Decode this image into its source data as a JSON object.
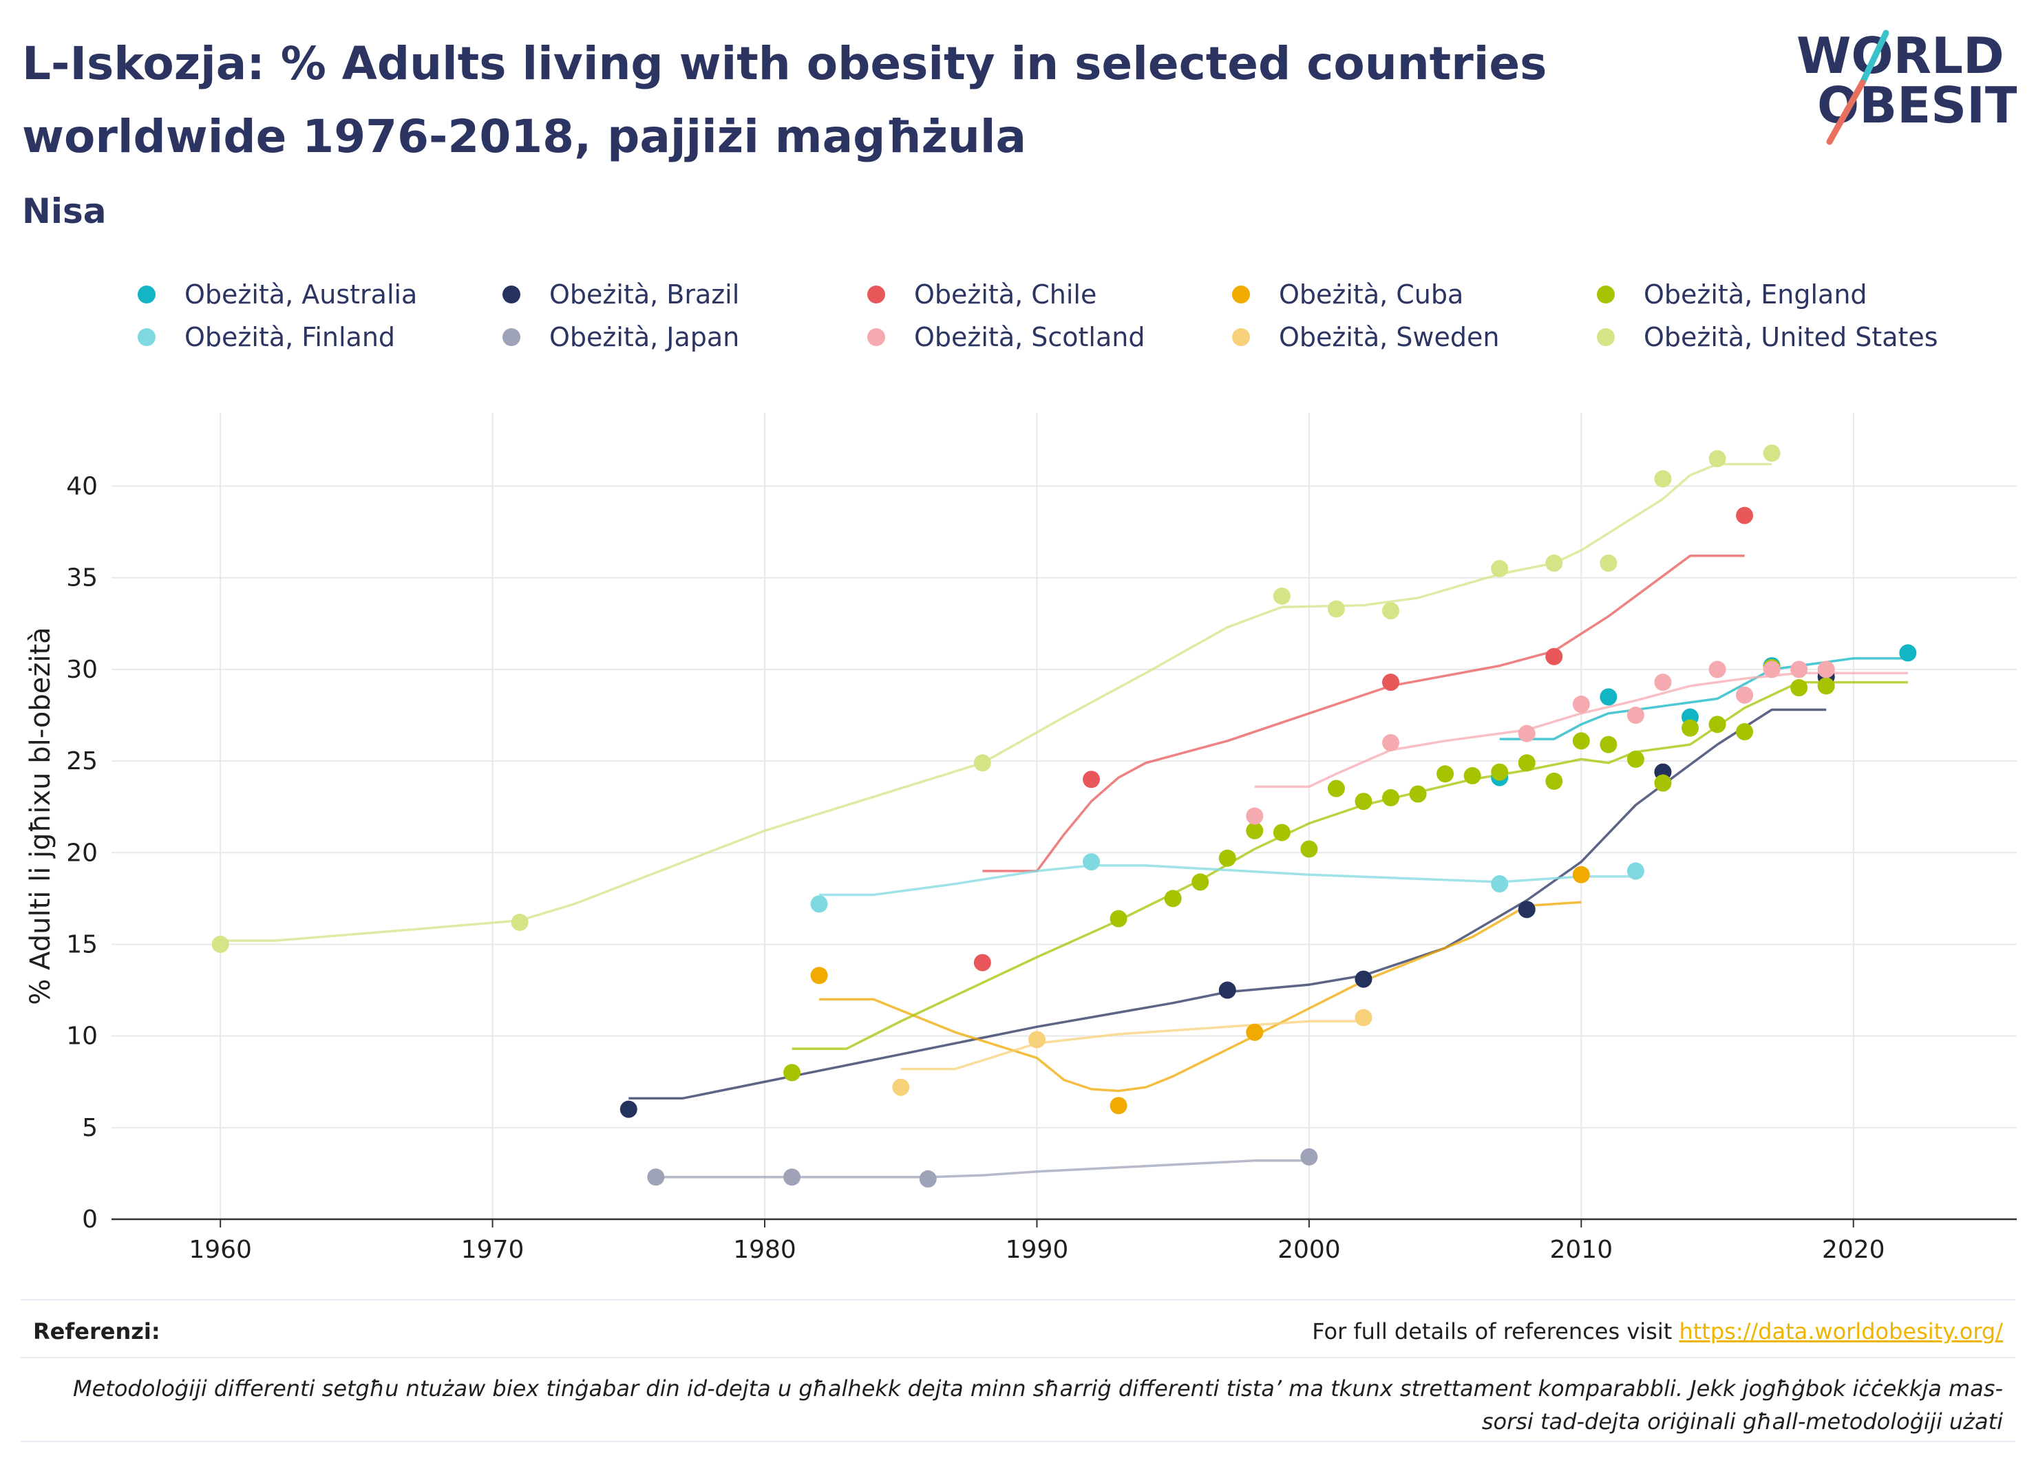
{
  "header": {
    "title": "L-Iskozja: % Adults living with obesity in selected countries worldwide 1976-2018, pajjiżi magħżula",
    "subtitle": "Nisa"
  },
  "logo": {
    "line1": "WORLD",
    "line2": "OBESITY"
  },
  "footer": {
    "references_label": "Referenzi:",
    "references_text": "For full details of references visit",
    "references_link": "https://data.worldobesity.org/",
    "note": "Metodoloġiji differenti setgħu ntużaw biex tinġabar din id-dejta u għalhekk dejta minn sħarriġ differenti tista’ ma tkunx strettament komparabbli. Jekk jogħġbok iċċekkja mas-sorsi tad-dejta oriġinali għall-metodoloġiji użati"
  },
  "chart_data": {
    "type": "scatter",
    "ylabel": "% Adulti li jgħixu bl-obeżità",
    "xlabel": "",
    "xlim": [
      1956,
      2026
    ],
    "ylim": [
      0,
      44
    ],
    "xticks": [
      1960,
      1970,
      1980,
      1990,
      2000,
      2010,
      2020
    ],
    "yticks": [
      0,
      5,
      10,
      15,
      20,
      25,
      30,
      35,
      40
    ],
    "grid": true,
    "legend_position": "top",
    "series": [
      {
        "name": "Obeżità, Australia",
        "color": "#12b5c4",
        "points": [
          [
            2007,
            24.1
          ],
          [
            2011,
            28.5
          ],
          [
            2014,
            27.4
          ],
          [
            2017,
            30.2
          ],
          [
            2022,
            30.9
          ]
        ],
        "trend": [
          [
            2007,
            26.2
          ],
          [
            2009,
            26.2
          ],
          [
            2010,
            27.0
          ],
          [
            2011,
            27.6
          ],
          [
            2013,
            28.0
          ],
          [
            2015,
            28.4
          ],
          [
            2017,
            30.0
          ],
          [
            2019,
            30.4
          ],
          [
            2020,
            30.6
          ],
          [
            2022,
            30.6
          ]
        ]
      },
      {
        "name": "Obeżità, Brazil",
        "color": "#26325e",
        "points": [
          [
            1975,
            6.0
          ],
          [
            1997,
            12.5
          ],
          [
            2002,
            13.1
          ],
          [
            2008,
            16.9
          ],
          [
            2013,
            24.4
          ],
          [
            2019,
            29.6
          ]
        ],
        "trend": [
          [
            1975,
            6.6
          ],
          [
            1977,
            6.6
          ],
          [
            1981,
            7.8
          ],
          [
            1985,
            9.0
          ],
          [
            1990,
            10.5
          ],
          [
            1995,
            11.8
          ],
          [
            1997,
            12.4
          ],
          [
            2000,
            12.8
          ],
          [
            2002,
            13.3
          ],
          [
            2005,
            14.8
          ],
          [
            2008,
            17.4
          ],
          [
            2010,
            19.5
          ],
          [
            2012,
            22.6
          ],
          [
            2013,
            23.7
          ],
          [
            2015,
            25.9
          ],
          [
            2017,
            27.8
          ],
          [
            2019,
            27.8
          ]
        ]
      },
      {
        "name": "Obeżità, Chile",
        "color": "#e8585a",
        "points": [
          [
            1988,
            14.0
          ],
          [
            1992,
            24.0
          ],
          [
            2003,
            29.3
          ],
          [
            2009,
            30.7
          ],
          [
            2016,
            38.4
          ]
        ],
        "trend": [
          [
            1988,
            19.0
          ],
          [
            1990,
            19.0
          ],
          [
            1991,
            21.0
          ],
          [
            1992,
            22.8
          ],
          [
            1993,
            24.1
          ],
          [
            1994,
            24.9
          ],
          [
            1997,
            26.1
          ],
          [
            2000,
            27.6
          ],
          [
            2003,
            29.1
          ],
          [
            2007,
            30.2
          ],
          [
            2009,
            31.0
          ],
          [
            2011,
            32.9
          ],
          [
            2014,
            36.2
          ],
          [
            2016,
            36.2
          ]
        ]
      },
      {
        "name": "Obeżità, Cuba",
        "color": "#f0aa00",
        "points": [
          [
            1982,
            13.3
          ],
          [
            1993,
            6.2
          ],
          [
            1998,
            10.2
          ],
          [
            2010,
            18.8
          ]
        ],
        "trend": [
          [
            1982,
            12.0
          ],
          [
            1984,
            12.0
          ],
          [
            1987,
            10.2
          ],
          [
            1990,
            8.8
          ],
          [
            1991,
            7.6
          ],
          [
            1992,
            7.1
          ],
          [
            1993,
            7.0
          ],
          [
            1994,
            7.2
          ],
          [
            1995,
            7.8
          ],
          [
            1998,
            10.0
          ],
          [
            2002,
            13.0
          ],
          [
            2006,
            15.4
          ],
          [
            2008,
            17.1
          ],
          [
            2010,
            17.3
          ]
        ]
      },
      {
        "name": "Obeżità, England",
        "color": "#a7c300",
        "points": [
          [
            1981,
            8.0
          ],
          [
            1993,
            16.4
          ],
          [
            1995,
            17.5
          ],
          [
            1996,
            18.4
          ],
          [
            1997,
            19.7
          ],
          [
            1998,
            21.2
          ],
          [
            1999,
            21.1
          ],
          [
            2000,
            20.2
          ],
          [
            2001,
            23.5
          ],
          [
            2002,
            22.8
          ],
          [
            2003,
            23.0
          ],
          [
            2004,
            23.2
          ],
          [
            2005,
            24.3
          ],
          [
            2006,
            24.2
          ],
          [
            2007,
            24.4
          ],
          [
            2008,
            24.9
          ],
          [
            2009,
            23.9
          ],
          [
            2010,
            26.1
          ],
          [
            2011,
            25.9
          ],
          [
            2012,
            25.1
          ],
          [
            2013,
            23.8
          ],
          [
            2014,
            26.8
          ],
          [
            2015,
            27.0
          ],
          [
            2016,
            26.6
          ],
          [
            2017,
            30.1
          ],
          [
            2018,
            29.0
          ],
          [
            2019,
            29.1
          ]
        ],
        "trend": [
          [
            1981,
            9.3
          ],
          [
            1983,
            9.3
          ],
          [
            1985,
            10.8
          ],
          [
            1990,
            14.3
          ],
          [
            1993,
            16.3
          ],
          [
            1996,
            18.5
          ],
          [
            1998,
            20.2
          ],
          [
            2000,
            21.6
          ],
          [
            2002,
            22.6
          ],
          [
            2004,
            23.3
          ],
          [
            2006,
            24.0
          ],
          [
            2008,
            24.5
          ],
          [
            2010,
            25.1
          ],
          [
            2011,
            24.9
          ],
          [
            2012,
            25.5
          ],
          [
            2014,
            25.9
          ],
          [
            2016,
            27.9
          ],
          [
            2018,
            29.3
          ],
          [
            2022,
            29.3
          ]
        ]
      },
      {
        "name": "Obeżità, Finland",
        "color": "#7fd9e0",
        "points": [
          [
            1982,
            17.2
          ],
          [
            1992,
            19.5
          ],
          [
            2007,
            18.3
          ],
          [
            2012,
            19.0
          ]
        ],
        "trend": [
          [
            1982,
            17.7
          ],
          [
            1984,
            17.7
          ],
          [
            1987,
            18.3
          ],
          [
            1990,
            19.0
          ],
          [
            1992,
            19.3
          ],
          [
            1994,
            19.3
          ],
          [
            2000,
            18.8
          ],
          [
            2007,
            18.4
          ],
          [
            2010,
            18.7
          ],
          [
            2012,
            18.7
          ]
        ]
      },
      {
        "name": "Obeżità, Japan",
        "color": "#9ea3b8",
        "points": [
          [
            1976,
            2.3
          ],
          [
            1981,
            2.3
          ],
          [
            1986,
            2.2
          ],
          [
            2000,
            3.4
          ]
        ],
        "trend": [
          [
            1976,
            2.3
          ],
          [
            1981,
            2.3
          ],
          [
            1986,
            2.3
          ],
          [
            1988,
            2.4
          ],
          [
            1990,
            2.6
          ],
          [
            1994,
            2.9
          ],
          [
            1998,
            3.2
          ],
          [
            2000,
            3.2
          ]
        ]
      },
      {
        "name": "Obeżità, Scotland",
        "color": "#f5aab0",
        "points": [
          [
            1998,
            22.0
          ],
          [
            2003,
            26.0
          ],
          [
            2008,
            26.5
          ],
          [
            2010,
            28.1
          ],
          [
            2012,
            27.5
          ],
          [
            2013,
            29.3
          ],
          [
            2015,
            30.0
          ],
          [
            2016,
            28.6
          ],
          [
            2017,
            30.0
          ],
          [
            2018,
            30.0
          ],
          [
            2019,
            30.0
          ]
        ],
        "trend": [
          [
            1998,
            23.6
          ],
          [
            2000,
            23.6
          ],
          [
            2001,
            24.3
          ],
          [
            2003,
            25.6
          ],
          [
            2005,
            26.1
          ],
          [
            2008,
            26.7
          ],
          [
            2010,
            27.6
          ],
          [
            2012,
            28.3
          ],
          [
            2014,
            29.1
          ],
          [
            2016,
            29.5
          ],
          [
            2018,
            29.8
          ],
          [
            2022,
            29.8
          ]
        ]
      },
      {
        "name": "Obeżità, Sweden",
        "color": "#f8d27a",
        "points": [
          [
            1985,
            7.2
          ],
          [
            1990,
            9.8
          ],
          [
            2002,
            11.0
          ]
        ],
        "trend": [
          [
            1985,
            8.2
          ],
          [
            1987,
            8.2
          ],
          [
            1990,
            9.6
          ],
          [
            1993,
            10.1
          ],
          [
            1996,
            10.4
          ],
          [
            2000,
            10.8
          ],
          [
            2002,
            10.8
          ]
        ]
      },
      {
        "name": "Obeżità, United States",
        "color": "#d6e387",
        "points": [
          [
            1960,
            15.0
          ],
          [
            1971,
            16.2
          ],
          [
            1988,
            24.9
          ],
          [
            1999,
            34.0
          ],
          [
            2001,
            33.3
          ],
          [
            2003,
            33.2
          ],
          [
            2007,
            35.5
          ],
          [
            2009,
            35.8
          ],
          [
            2011,
            35.8
          ],
          [
            2013,
            40.4
          ],
          [
            2015,
            41.5
          ],
          [
            2017,
            41.8
          ]
        ],
        "trend": [
          [
            1960,
            15.2
          ],
          [
            1962,
            15.2
          ],
          [
            1967,
            15.8
          ],
          [
            1971,
            16.3
          ],
          [
            1973,
            17.2
          ],
          [
            1980,
            21.2
          ],
          [
            1988,
            24.9
          ],
          [
            1991,
            27.4
          ],
          [
            1994,
            29.8
          ],
          [
            1997,
            32.3
          ],
          [
            1999,
            33.4
          ],
          [
            2002,
            33.5
          ],
          [
            2004,
            33.9
          ],
          [
            2007,
            35.2
          ],
          [
            2009,
            35.8
          ],
          [
            2010,
            36.5
          ],
          [
            2013,
            39.3
          ],
          [
            2014,
            40.6
          ],
          [
            2015,
            41.2
          ],
          [
            2017,
            41.2
          ]
        ]
      }
    ]
  }
}
